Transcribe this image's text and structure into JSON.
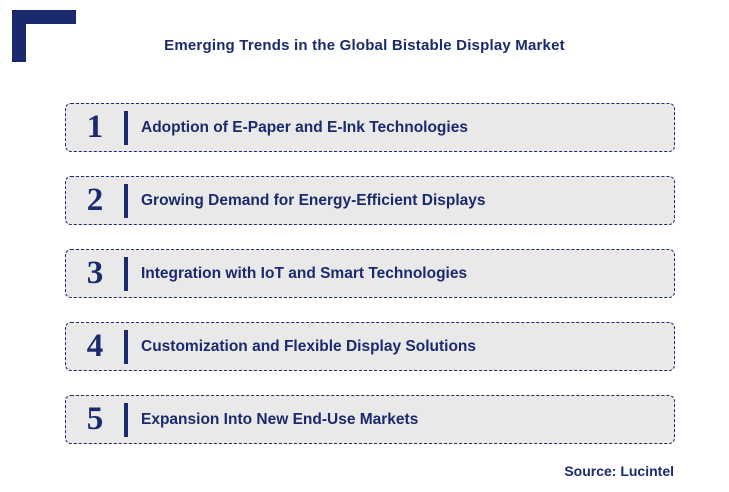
{
  "title": "Emerging Trends in the Global Bistable Display Market",
  "source": "Source: Lucintel",
  "colors": {
    "navy": "#1a2a6c",
    "row_background": "#e9e9e9"
  },
  "items": [
    {
      "number": "1",
      "label": "Adoption of E-Paper and E-Ink Technologies"
    },
    {
      "number": "2",
      "label": "Growing Demand for Energy-Efficient Displays"
    },
    {
      "number": "3",
      "label": "Integration with IoT and Smart Technologies"
    },
    {
      "number": "4",
      "label": "Customization and Flexible Display Solutions"
    },
    {
      "number": "5",
      "label": "Expansion Into New End-Use Markets"
    }
  ]
}
